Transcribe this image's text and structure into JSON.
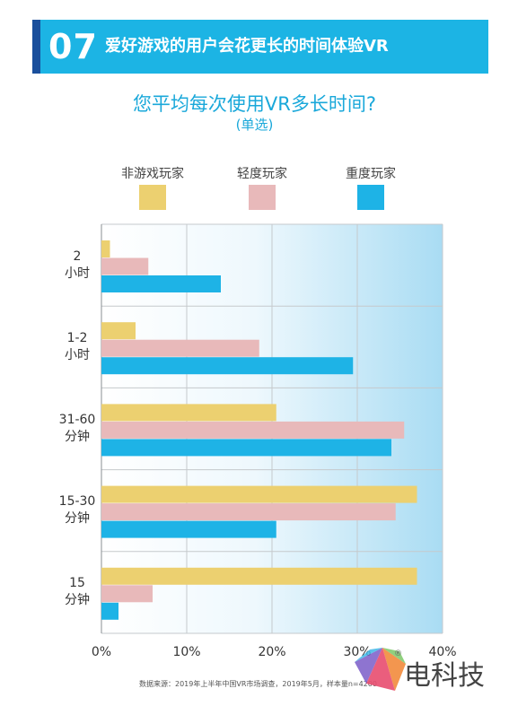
{
  "header": {
    "number": "07",
    "title": "爱好游戏的用户会花更长的时间体验VR"
  },
  "chart_data": {
    "type": "bar",
    "orientation": "horizontal",
    "question": "您平均每次使用VR多长时间?",
    "subtitle": "(单选)",
    "categories": [
      [
        "2",
        "小时"
      ],
      [
        "1-2",
        "小时"
      ],
      [
        "31-60",
        "分钟"
      ],
      [
        "15-30",
        "分钟"
      ],
      [
        "15",
        "分钟"
      ]
    ],
    "series": [
      {
        "name": "非游戏玩家",
        "color": "#ecd070",
        "values": [
          1,
          4,
          20.5,
          37,
          37
        ]
      },
      {
        "name": "轻度玩家",
        "color": "#e8b9ba",
        "values": [
          5.5,
          18.5,
          35.5,
          34.5,
          6
        ]
      },
      {
        "name": "重度玩家",
        "color": "#1eb3e6",
        "values": [
          14,
          29.5,
          34,
          20.5,
          2
        ]
      }
    ],
    "xlim": [
      0,
      40
    ],
    "xticks": [
      "0%",
      "10%",
      "20%",
      "30%",
      "40%"
    ],
    "grid": true,
    "legend_position": "top"
  },
  "footer": {
    "source": "数据来源：2019年上半年中国VR市场调查，2019年5月，样本量n=4200"
  },
  "watermark": {
    "text": "电科技",
    "reg_mark": "®"
  }
}
